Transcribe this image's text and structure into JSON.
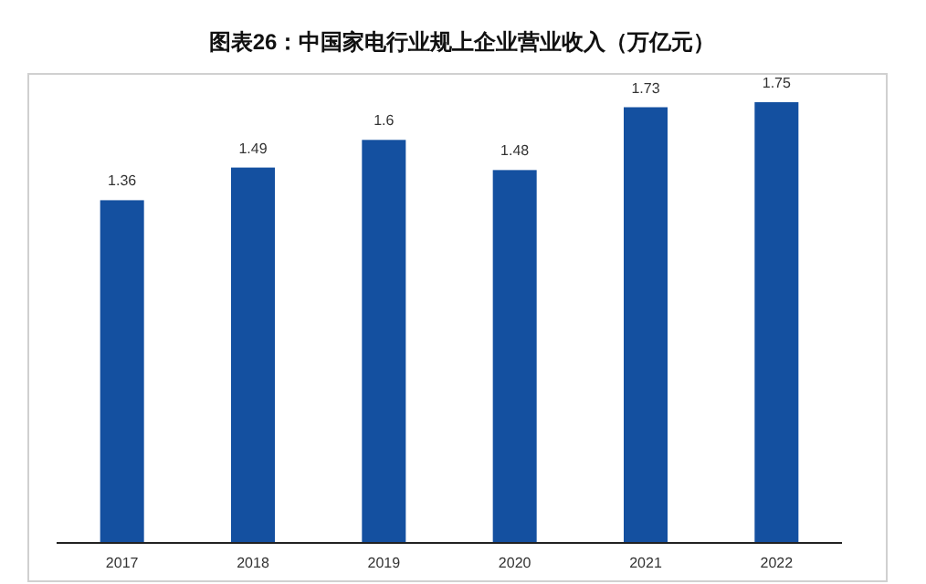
{
  "chart_data": {
    "type": "bar",
    "title": "图表26：中国家电行业规上企业营业收入（万亿元）",
    "categories": [
      "2017",
      "2018",
      "2019",
      "2020",
      "2021",
      "2022"
    ],
    "values": [
      1.36,
      1.49,
      1.6,
      1.48,
      1.73,
      1.75
    ],
    "color": "#1450a0",
    "data_labels": true
  }
}
